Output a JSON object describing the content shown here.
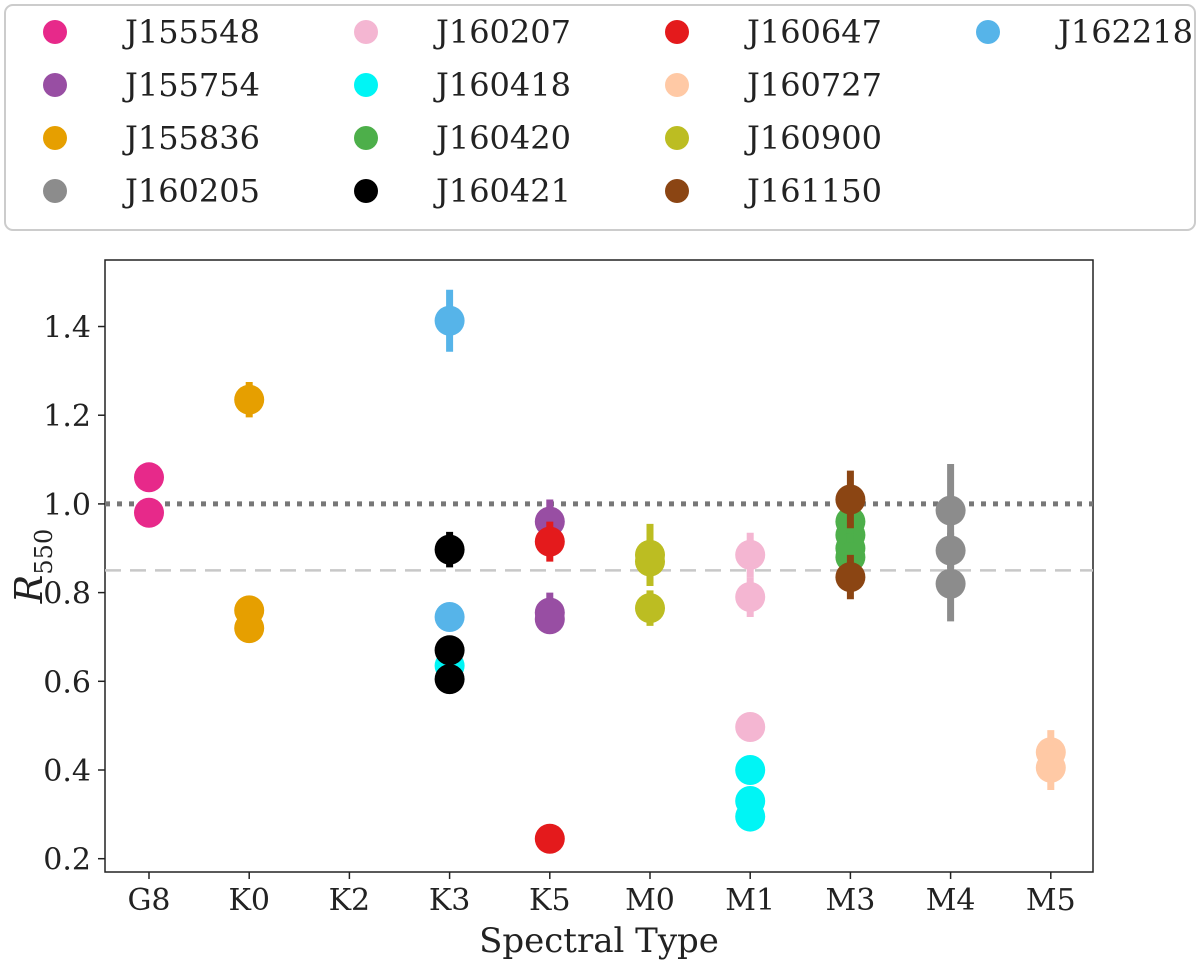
{
  "chart_data": {
    "type": "scatter",
    "xlabel": "Spectral Type",
    "ylabel": "R",
    "ylabel_subscript": "550",
    "categories": [
      "G8",
      "K0",
      "K2",
      "K3",
      "K5",
      "M0",
      "M1",
      "M3",
      "M4",
      "M5"
    ],
    "ylim": [
      0.17,
      1.55
    ],
    "yticks": [
      "0.2",
      "0.4",
      "0.6",
      "0.8",
      "1.0",
      "1.2",
      "1.4"
    ],
    "reference_lines": [
      {
        "y": 1.0,
        "style": "dotted",
        "color": "#777777"
      },
      {
        "y": 0.85,
        "style": "dashed",
        "color": "#c8c8c8"
      }
    ],
    "legend_position": "top",
    "series": [
      {
        "name": "J155548",
        "color": "#e7298a",
        "points": [
          {
            "x": "G8",
            "y": 1.06,
            "err": 0.02
          },
          {
            "x": "G8",
            "y": 0.98,
            "err": 0.02
          }
        ]
      },
      {
        "name": "J155754",
        "color": "#984ea3",
        "points": [
          {
            "x": "K5",
            "y": 0.96,
            "err": 0.05
          },
          {
            "x": "K5",
            "y": 0.755,
            "err": 0.045
          },
          {
            "x": "K5",
            "y": 0.74,
            "err": 0.03
          }
        ]
      },
      {
        "name": "J155836",
        "color": "#e69f00",
        "points": [
          {
            "x": "K0",
            "y": 1.235,
            "err": 0.04
          },
          {
            "x": "K0",
            "y": 0.76,
            "err": 0.02
          },
          {
            "x": "K0",
            "y": 0.72,
            "err": 0.02
          }
        ]
      },
      {
        "name": "J160205",
        "color": "#8c8c8c",
        "points": [
          {
            "x": "M4",
            "y": 0.985,
            "err": 0.105
          },
          {
            "x": "M4",
            "y": 0.895,
            "err": 0.04
          },
          {
            "x": "M4",
            "y": 0.82,
            "err": 0.085
          }
        ]
      },
      {
        "name": "J160207",
        "color": "#f4b6d2",
        "points": [
          {
            "x": "M1",
            "y": 0.885,
            "err": 0.05
          },
          {
            "x": "M1",
            "y": 0.79,
            "err": 0.045
          },
          {
            "x": "M1",
            "y": 0.497,
            "err": 0.02
          }
        ]
      },
      {
        "name": "J160418",
        "color": "#00f5f5",
        "points": [
          {
            "x": "K3",
            "y": 0.635,
            "err": 0.02
          },
          {
            "x": "M1",
            "y": 0.4,
            "err": 0.02
          },
          {
            "x": "M1",
            "y": 0.33,
            "err": 0.02
          },
          {
            "x": "M1",
            "y": 0.295,
            "err": 0.02
          }
        ]
      },
      {
        "name": "J160420",
        "color": "#4daf4a",
        "points": [
          {
            "x": "M3",
            "y": 0.96,
            "err": 0.06
          },
          {
            "x": "M3",
            "y": 0.93,
            "err": 0.05
          },
          {
            "x": "M3",
            "y": 0.9,
            "err": 0.05
          },
          {
            "x": "M3",
            "y": 0.88,
            "err": 0.05
          }
        ]
      },
      {
        "name": "J160421",
        "color": "#000000",
        "points": [
          {
            "x": "K3",
            "y": 0.897,
            "err": 0.04
          },
          {
            "x": "K3",
            "y": 0.67,
            "err": 0.02
          },
          {
            "x": "K3",
            "y": 0.605,
            "err": 0.02
          }
        ]
      },
      {
        "name": "J160647",
        "color": "#e41a1c",
        "points": [
          {
            "x": "K5",
            "y": 0.915,
            "err": 0.045
          },
          {
            "x": "K5",
            "y": 0.245,
            "err": 0.02
          }
        ]
      },
      {
        "name": "J160727",
        "color": "#ffc9a5",
        "points": [
          {
            "x": "M5",
            "y": 0.44,
            "err": 0.05
          },
          {
            "x": "M5",
            "y": 0.405,
            "err": 0.05
          }
        ]
      },
      {
        "name": "J160900",
        "color": "#bcbd22",
        "points": [
          {
            "x": "M0",
            "y": 0.885,
            "err": 0.07
          },
          {
            "x": "M0",
            "y": 0.87,
            "err": 0.04
          },
          {
            "x": "M0",
            "y": 0.765,
            "err": 0.04
          }
        ]
      },
      {
        "name": "J161150",
        "color": "#8b4513",
        "points": [
          {
            "x": "M3",
            "y": 1.01,
            "err": 0.065
          },
          {
            "x": "M3",
            "y": 0.835,
            "err": 0.05
          }
        ]
      },
      {
        "name": "J162218",
        "color": "#56b4e9",
        "points": [
          {
            "x": "K3",
            "y": 1.413,
            "err": 0.07
          },
          {
            "x": "K3",
            "y": 0.745,
            "err": 0.03
          }
        ]
      }
    ]
  }
}
